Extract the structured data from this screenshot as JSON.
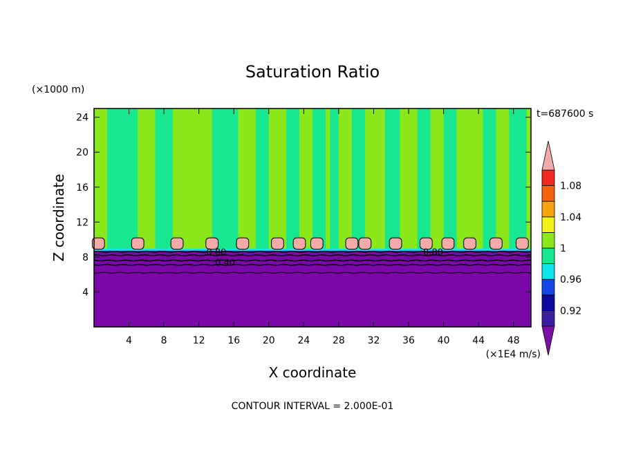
{
  "chart_data": {
    "type": "heatmap",
    "title": "Saturation Ratio",
    "xlabel": "X coordinate",
    "ylabel": "Z coordinate",
    "x_unit": "(×1E4 m/s)",
    "y_unit": "(×1000 m)",
    "time_label": "t=687600 s",
    "footer": "CONTOUR INTERVAL = 2.000E-01",
    "xlim": [
      0,
      50
    ],
    "ylim": [
      0,
      25
    ],
    "x_ticks": [
      4,
      8,
      12,
      16,
      20,
      24,
      28,
      32,
      36,
      40,
      44,
      48
    ],
    "y_ticks": [
      4,
      8,
      12,
      16,
      20,
      24
    ],
    "contour_labels": [
      {
        "text": "0.80",
        "x": 14,
        "y": 8.6
      },
      {
        "text": "0.40",
        "x": 15,
        "y": 7.4
      },
      {
        "text": "0.80",
        "x": 38.8,
        "y": 8.6
      }
    ],
    "colorbar": {
      "levels": [
        "0.92",
        "0.96",
        "1",
        "1.04",
        "1.08"
      ],
      "bands": [
        "#3a1f9e",
        "#0c0c9c",
        "#1746e6",
        "#11e6f0",
        "#17e88f",
        "#8be81a",
        "#f3f31a",
        "#f5a40c",
        "#f1660c",
        "#ee2a22"
      ],
      "under_color": "#7a10a8",
      "over_color": "#f4aaa6"
    },
    "regions": {
      "lower_color": "#7a08a8",
      "lower_top_z": 8.8,
      "upper_base_color": "#8be81a",
      "upper_alt_color": "#17e88f",
      "cloud_color": "#f4aaa6"
    }
  }
}
